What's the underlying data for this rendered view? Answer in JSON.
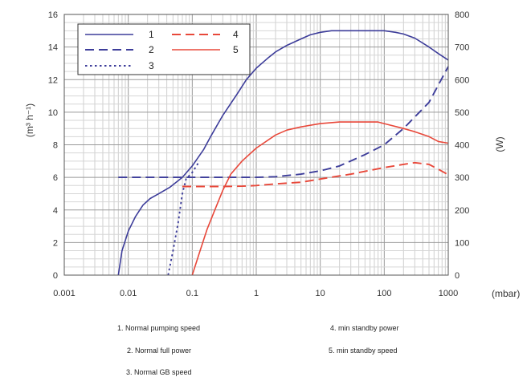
{
  "chart_data": {
    "type": "line",
    "x_scale": "log",
    "xlim": [
      0.001,
      1000
    ],
    "ylim_left": [
      0,
      16
    ],
    "ylim_right": [
      0,
      800
    ],
    "grid": true,
    "legend_placement": "top-left",
    "xlabel": "(mbar)",
    "ylabel_left": "(m³ h⁻¹)",
    "ylabel_right": "(W)",
    "x_ticks": [
      "0.001",
      "0.01",
      "0.1",
      "1",
      "10",
      "100",
      "1000"
    ],
    "x_tick_values": [
      0.001,
      0.01,
      0.1,
      1,
      10,
      100,
      1000
    ],
    "y_left_ticks": [
      "0",
      "2",
      "4",
      "6",
      "8",
      "10",
      "12",
      "14",
      "16"
    ],
    "y_left_tick_values": [
      0,
      2,
      4,
      6,
      8,
      10,
      12,
      14,
      16
    ],
    "y_right_ticks": [
      "0",
      "100",
      "200",
      "300",
      "400",
      "500",
      "600",
      "700",
      "800"
    ],
    "y_right_tick_values": [
      0,
      100,
      200,
      300,
      400,
      500,
      600,
      700,
      800
    ],
    "series": [
      {
        "name": "1",
        "color": "#3d3d9a",
        "dash": "solid",
        "axis": "left",
        "points": [
          [
            0.007,
            0
          ],
          [
            0.008,
            1.5
          ],
          [
            0.01,
            2.7
          ],
          [
            0.013,
            3.6
          ],
          [
            0.017,
            4.3
          ],
          [
            0.022,
            4.7
          ],
          [
            0.03,
            5.0
          ],
          [
            0.045,
            5.4
          ],
          [
            0.07,
            6.0
          ],
          [
            0.1,
            6.7
          ],
          [
            0.15,
            7.7
          ],
          [
            0.2,
            8.6
          ],
          [
            0.3,
            9.8
          ],
          [
            0.5,
            11.1
          ],
          [
            0.7,
            12.0
          ],
          [
            1,
            12.7
          ],
          [
            1.5,
            13.3
          ],
          [
            2,
            13.7
          ],
          [
            3,
            14.1
          ],
          [
            5,
            14.5
          ],
          [
            7,
            14.75
          ],
          [
            10,
            14.9
          ],
          [
            15,
            15.0
          ],
          [
            20,
            15.0
          ],
          [
            40,
            15.0
          ],
          [
            70,
            15.0
          ],
          [
            100,
            15.0
          ],
          [
            150,
            14.9
          ],
          [
            200,
            14.8
          ],
          [
            300,
            14.55
          ],
          [
            500,
            14.0
          ],
          [
            700,
            13.6
          ],
          [
            1000,
            13.2
          ]
        ]
      },
      {
        "name": "2",
        "color": "#3d3d9a",
        "dash": "dashed",
        "axis": "right",
        "points": [
          [
            0.007,
            300
          ],
          [
            0.1,
            300
          ],
          [
            1,
            300
          ],
          [
            2,
            302
          ],
          [
            5,
            310
          ],
          [
            10,
            320
          ],
          [
            20,
            335
          ],
          [
            50,
            370
          ],
          [
            100,
            400
          ],
          [
            200,
            450
          ],
          [
            500,
            530
          ],
          [
            1000,
            640
          ]
        ]
      },
      {
        "name": "3",
        "color": "#3d3d9a",
        "dash": "dotted",
        "axis": "left",
        "points": [
          [
            0.042,
            0
          ],
          [
            0.05,
            1.5
          ],
          [
            0.06,
            3.2
          ],
          [
            0.07,
            5.0
          ],
          [
            0.08,
            5.9
          ],
          [
            0.1,
            6.3
          ],
          [
            0.13,
            7.0
          ]
        ]
      },
      {
        "name": "4",
        "color": "#e8483a",
        "dash": "dashed",
        "axis": "right",
        "points": [
          [
            0.07,
            272
          ],
          [
            0.3,
            272
          ],
          [
            0.6,
            273
          ],
          [
            1,
            275
          ],
          [
            2,
            280
          ],
          [
            5,
            285
          ],
          [
            10,
            295
          ],
          [
            30,
            310
          ],
          [
            100,
            330
          ],
          [
            200,
            340
          ],
          [
            300,
            345
          ],
          [
            500,
            340
          ],
          [
            700,
            325
          ],
          [
            1000,
            308
          ]
        ]
      },
      {
        "name": "5",
        "color": "#e8483a",
        "dash": "solid",
        "axis": "left",
        "points": [
          [
            0.1,
            0
          ],
          [
            0.13,
            1.4
          ],
          [
            0.17,
            2.8
          ],
          [
            0.22,
            3.9
          ],
          [
            0.3,
            5.2
          ],
          [
            0.4,
            6.2
          ],
          [
            0.6,
            7.0
          ],
          [
            1,
            7.8
          ],
          [
            2,
            8.6
          ],
          [
            3,
            8.9
          ],
          [
            5,
            9.1
          ],
          [
            10,
            9.3
          ],
          [
            20,
            9.4
          ],
          [
            50,
            9.4
          ],
          [
            80,
            9.4
          ],
          [
            100,
            9.3
          ],
          [
            200,
            9.0
          ],
          [
            300,
            8.8
          ],
          [
            500,
            8.5
          ],
          [
            700,
            8.2
          ],
          [
            1000,
            8.1
          ]
        ]
      }
    ]
  },
  "captions": {
    "c1": "1. Normal pumping speed",
    "c2": "2. Normal full power",
    "c3": "3. Normal GB speed",
    "c4": "4. min standby power",
    "c5": "5. min standby speed"
  }
}
